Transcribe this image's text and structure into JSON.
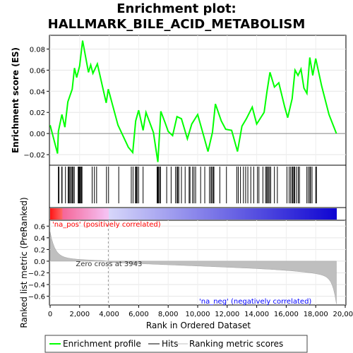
{
  "chart_data": {
    "type": "line",
    "title_line1": "Enrichment plot:",
    "title_line2": "HALLMARK_BILE_ACID_METABOLISM",
    "ylabel_top": "Enrichment score (ES)",
    "ylabel_bottom": "Ranked list metric (PreRanked)",
    "xlabel": "Rank in Ordered Dataset",
    "xlim": [
      0,
      20000
    ],
    "ylim_es": [
      -0.03,
      0.093
    ],
    "ylim_metric": [
      -0.75,
      0.7
    ],
    "x_ticks": [
      "0",
      "2,000",
      "4,000",
      "6,000",
      "8,000",
      "10,000",
      "12,000",
      "14,000",
      "16,000",
      "18,000",
      "20,000"
    ],
    "x_tick_values": [
      0,
      2000,
      4000,
      6000,
      8000,
      10000,
      12000,
      14000,
      16000,
      18000,
      20000
    ],
    "y_ticks_es": [
      "−0.02",
      "0.00",
      "0.02",
      "0.04",
      "0.06",
      "0.08"
    ],
    "y_tick_values_es": [
      -0.02,
      0,
      0.02,
      0.04,
      0.06,
      0.08
    ],
    "y_ticks_metric": [
      "−0.6",
      "−0.4",
      "−0.2",
      "0.0",
      "0.2",
      "0.4",
      "0.6"
    ],
    "y_tick_values_metric": [
      -0.6,
      -0.4,
      -0.2,
      0,
      0.2,
      0.4,
      0.6
    ],
    "zero_cross_label": "Zero cross at 3943",
    "zero_cross": 3943,
    "pos_label": "'na_pos' (positively correlated)",
    "neg_label": "'na_neg' (negatively correlated)",
    "total_genes": 19400,
    "es_profile": {
      "x": [
        0,
        500,
        560,
        800,
        1000,
        1200,
        1500,
        1650,
        1800,
        2000,
        2200,
        2600,
        2750,
        2900,
        3200,
        3800,
        3943,
        4600,
        5300,
        5600,
        5800,
        6000,
        6300,
        6500,
        7000,
        7300,
        7500,
        7800,
        8000,
        8300,
        8600,
        8900,
        9300,
        9600,
        10000,
        10400,
        10700,
        11000,
        11200,
        11600,
        11900,
        12300,
        12700,
        13000,
        13300,
        13700,
        14000,
        14500,
        14700,
        14900,
        15200,
        15500,
        15900,
        16100,
        16400,
        16600,
        16800,
        17000,
        17200,
        17400,
        17600,
        17800,
        18000,
        18400,
        18900,
        19400
      ],
      "y": [
        0.008,
        -0.019,
        0.002,
        0.018,
        0.006,
        0.03,
        0.042,
        0.062,
        0.053,
        0.064,
        0.088,
        0.058,
        0.065,
        0.057,
        0.066,
        0.029,
        0.042,
        0.008,
        -0.013,
        -0.018,
        0.012,
        0.022,
        0.003,
        0.02,
        0.001,
        -0.027,
        0.021,
        0.01,
        0.002,
        -0.002,
        0.016,
        0.014,
        -0.005,
        0.009,
        0.018,
        -0.002,
        -0.017,
        0.001,
        0.028,
        0.012,
        0.004,
        0.003,
        -0.017,
        0.007,
        0.014,
        0.025,
        0.009,
        0.02,
        0.04,
        0.058,
        0.044,
        0.048,
        0.025,
        0.015,
        0.033,
        0.06,
        0.055,
        0.061,
        0.043,
        0.038,
        0.072,
        0.055,
        0.071,
        0.045,
        0.018,
        0.0
      ]
    },
    "hits": [
      560,
      580,
      600,
      790,
      810,
      1040,
      1220,
      1240,
      1300,
      1370,
      1450,
      1520,
      1560,
      1640,
      1900,
      1940,
      1990,
      2010,
      2060,
      2120,
      2160,
      2850,
      3000,
      3150,
      3820,
      3960,
      4650,
      5500,
      5620,
      5780,
      5800,
      5850,
      5900,
      6000,
      6300,
      7250,
      7300,
      7350,
      7420,
      7480,
      7900,
      8200,
      8500,
      8600,
      8650,
      8720,
      8900,
      9150,
      9420,
      9480,
      9650,
      9750,
      9860,
      10200,
      10480,
      10800,
      10900,
      10960,
      11050,
      11100,
      11500,
      11950,
      12650,
      12750,
      12900,
      13100,
      13250,
      13400,
      13600,
      13800,
      14050,
      14150,
      14420,
      14600,
      14680,
      14720,
      14800,
      14870,
      14950,
      15200,
      15400,
      16050,
      16200,
      16300,
      16400,
      16450,
      16520,
      16580,
      16700,
      16820,
      16900,
      17400,
      17500,
      17600,
      17650,
      17750,
      18000,
      18050
    ]
  },
  "legend": {
    "items": [
      {
        "label": "Enrichment profile",
        "color": "#00ff00"
      },
      {
        "label": "Hits",
        "color": "#000000"
      },
      {
        "label": "Ranking metric scores",
        "color": "#c0c0c0"
      }
    ]
  },
  "colors": {
    "es_line": "#00ff00",
    "metric_fill": "#bfbfbf",
    "pos_text": "#ff0000",
    "neg_text": "#0000ff"
  }
}
